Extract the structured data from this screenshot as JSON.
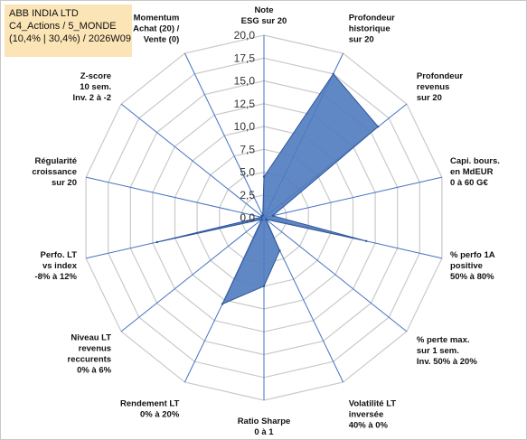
{
  "header": {
    "line1": "ABB INDIA LTD",
    "line2": "C4_Actions / 5_MONDE",
    "line3": "(10,4% | 30,4%) / 2026W09"
  },
  "colors": {
    "fill": "#4f7bbf",
    "stroke": "#2e5597",
    "grid": "#c9c9c9",
    "axis": "#4472c4",
    "header_bg": "#fbe5b6"
  },
  "chart_data": {
    "type": "radar",
    "rmin": 0,
    "rmax": 20,
    "ticks": [
      "0,0",
      "2,5",
      "5,0",
      "7,5",
      "10,0",
      "12,5",
      "15,0",
      "17,5",
      "20,0"
    ],
    "axes": [
      {
        "label": [
          "Note",
          "ESG sur 20"
        ],
        "value": 4.5
      },
      {
        "label": [
          "Profondeur",
          "historique",
          "sur 20"
        ],
        "value": 17.5
      },
      {
        "label": [
          "Profondeur",
          "revenus",
          "sur 20"
        ],
        "value": 16.0
      },
      {
        "label": [
          "Capi. bours.",
          "en MdEUR",
          "0 à 60 G€"
        ],
        "value": 1.0
      },
      {
        "label": [
          "% perfo 1A",
          "positive",
          "50% à 80%"
        ],
        "value": 11.5
      },
      {
        "label": [
          "% perte max.",
          "sur 1 sem.",
          "Inv. 50% à 20%"
        ],
        "value": 0.3
      },
      {
        "label": [
          "Volatilité LT",
          "inversée",
          "40% à 0%"
        ],
        "value": 4.0
      },
      {
        "label": [
          "Ratio Sharpe",
          "0 à 1"
        ],
        "value": 7.5
      },
      {
        "label": [
          "Rendement LT",
          "0% à 20%"
        ],
        "value": 10.5
      },
      {
        "label": [
          "Niveau LT",
          "revenus",
          "reccurents",
          "0% à 6%"
        ],
        "value": 0.3
      },
      {
        "label": [
          "Perfo. LT",
          "vs index",
          "-8% à 12%"
        ],
        "value": 12.0
      },
      {
        "label": [
          "Régularité",
          "croissance",
          "sur 20"
        ],
        "value": 0.3
      },
      {
        "label": [
          "Z-score",
          "10 sem.",
          "Inv. 2 à -2"
        ],
        "value": 0.3
      },
      {
        "label": [
          "Momentum",
          "Achat (20) /",
          "Vente (0)"
        ],
        "value": 0.3
      }
    ]
  }
}
